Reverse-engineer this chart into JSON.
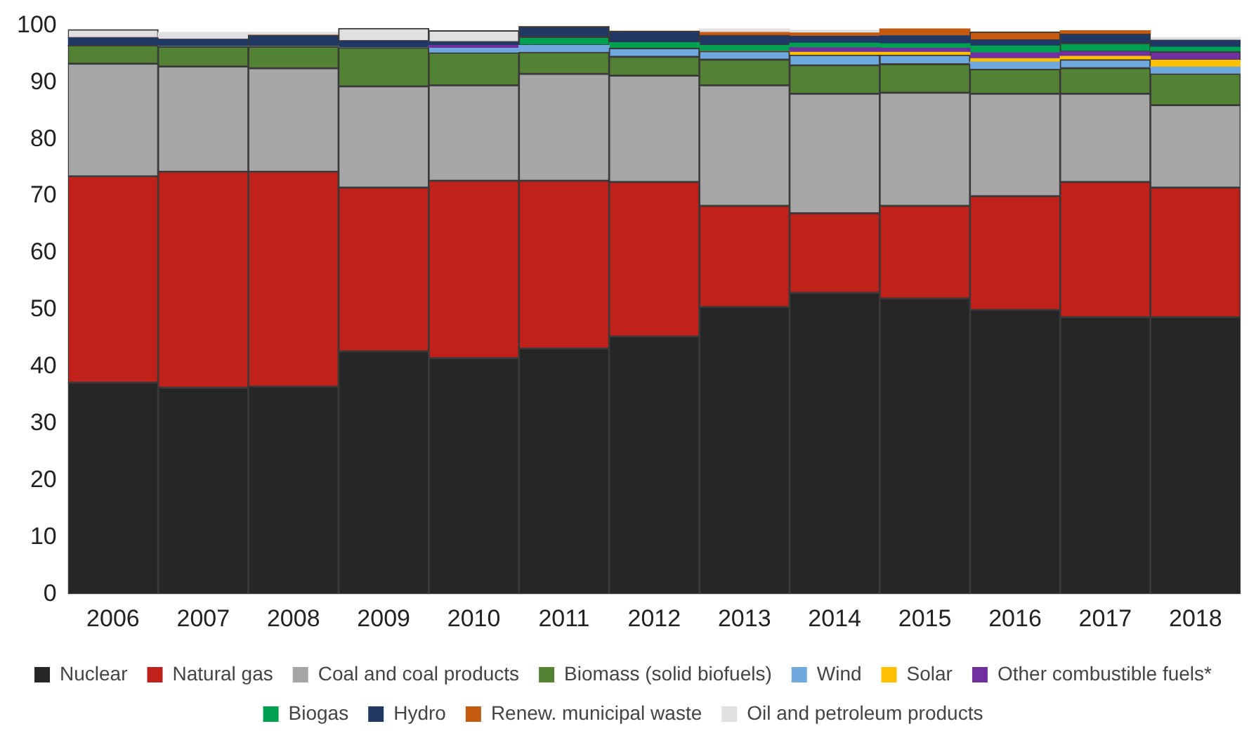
{
  "chart_data": {
    "type": "bar",
    "stacked": true,
    "categories": [
      "2006",
      "2007",
      "2008",
      "2009",
      "2010",
      "2011",
      "2012",
      "2013",
      "2014",
      "2015",
      "2016",
      "2017",
      "2018"
    ],
    "ylim": [
      0,
      100
    ],
    "yticks": [
      0,
      10,
      20,
      30,
      40,
      50,
      60,
      70,
      80,
      90,
      100
    ],
    "grid": false,
    "legend": "bottom",
    "series": [
      {
        "name": "Nuclear",
        "color": "#262626",
        "values": [
          37.2,
          36.3,
          36.5,
          42.7,
          41.5,
          43.2,
          45.3,
          50.5,
          53,
          52,
          50,
          48.7,
          48.7
        ]
      },
      {
        "name": "Natural gas",
        "color": "#c0211a",
        "values": [
          36.3,
          38,
          37.8,
          28.8,
          31.2,
          29.5,
          27.2,
          17.8,
          14,
          16.3,
          20,
          23.8,
          22.8
        ]
      },
      {
        "name": "Coal and coal products",
        "color": "#a6a6a6",
        "values": [
          19.8,
          18.5,
          18.2,
          17.8,
          16.8,
          18.8,
          18.7,
          21.2,
          21,
          19.9,
          18,
          15.5,
          14.5
        ]
      },
      {
        "name": "Biomass (solid biofuels)",
        "color": "#548235",
        "values": [
          3.2,
          3.5,
          3.8,
          6.8,
          5.7,
          3.8,
          3.3,
          4.5,
          5,
          5,
          4.3,
          4.5,
          5.5
        ]
      },
      {
        "name": "Wind",
        "color": "#6fa8dc",
        "values": [
          0,
          0,
          0,
          0,
          0.8,
          1.2,
          1.5,
          1.5,
          1.8,
          1.6,
          1.3,
          1.5,
          1.2
        ]
      },
      {
        "name": "Solar",
        "color": "#ffc000",
        "values": [
          0,
          0,
          0,
          0,
          0,
          0,
          0,
          0,
          0.5,
          0.5,
          0.6,
          0.6,
          1.2
        ]
      },
      {
        "name": "Other combustible fuels*",
        "color": "#7030a0",
        "values": [
          0,
          0,
          0,
          0,
          0.5,
          0,
          0,
          0,
          0.8,
          0.7,
          1,
          0.8,
          1.5
        ]
      },
      {
        "name": "Biogas",
        "color": "#00a050",
        "values": [
          0,
          0,
          0,
          0,
          0,
          1.5,
          1,
          1,
          0.8,
          0.8,
          1.2,
          1.5,
          0.8
        ]
      },
      {
        "name": "Hydro",
        "color": "#1f3864",
        "values": [
          1.3,
          1.3,
          2,
          1.2,
          0.6,
          1.8,
          2,
          1.8,
          1.2,
          1.4,
          1,
          1.6,
          1.2
        ]
      },
      {
        "name": "Renew. municipal waste",
        "color": "#c55a11",
        "values": [
          0,
          0,
          0,
          0,
          0,
          0,
          0,
          0.5,
          0.6,
          1.2,
          1.5,
          0.6,
          0
        ]
      },
      {
        "name": "Oil and petroleum products",
        "color": "#e0e0e0",
        "values": [
          1.5,
          1.2,
          0.5,
          2.2,
          2,
          0,
          0,
          0.6,
          0.5,
          0,
          0,
          0,
          0.5
        ]
      }
    ]
  }
}
